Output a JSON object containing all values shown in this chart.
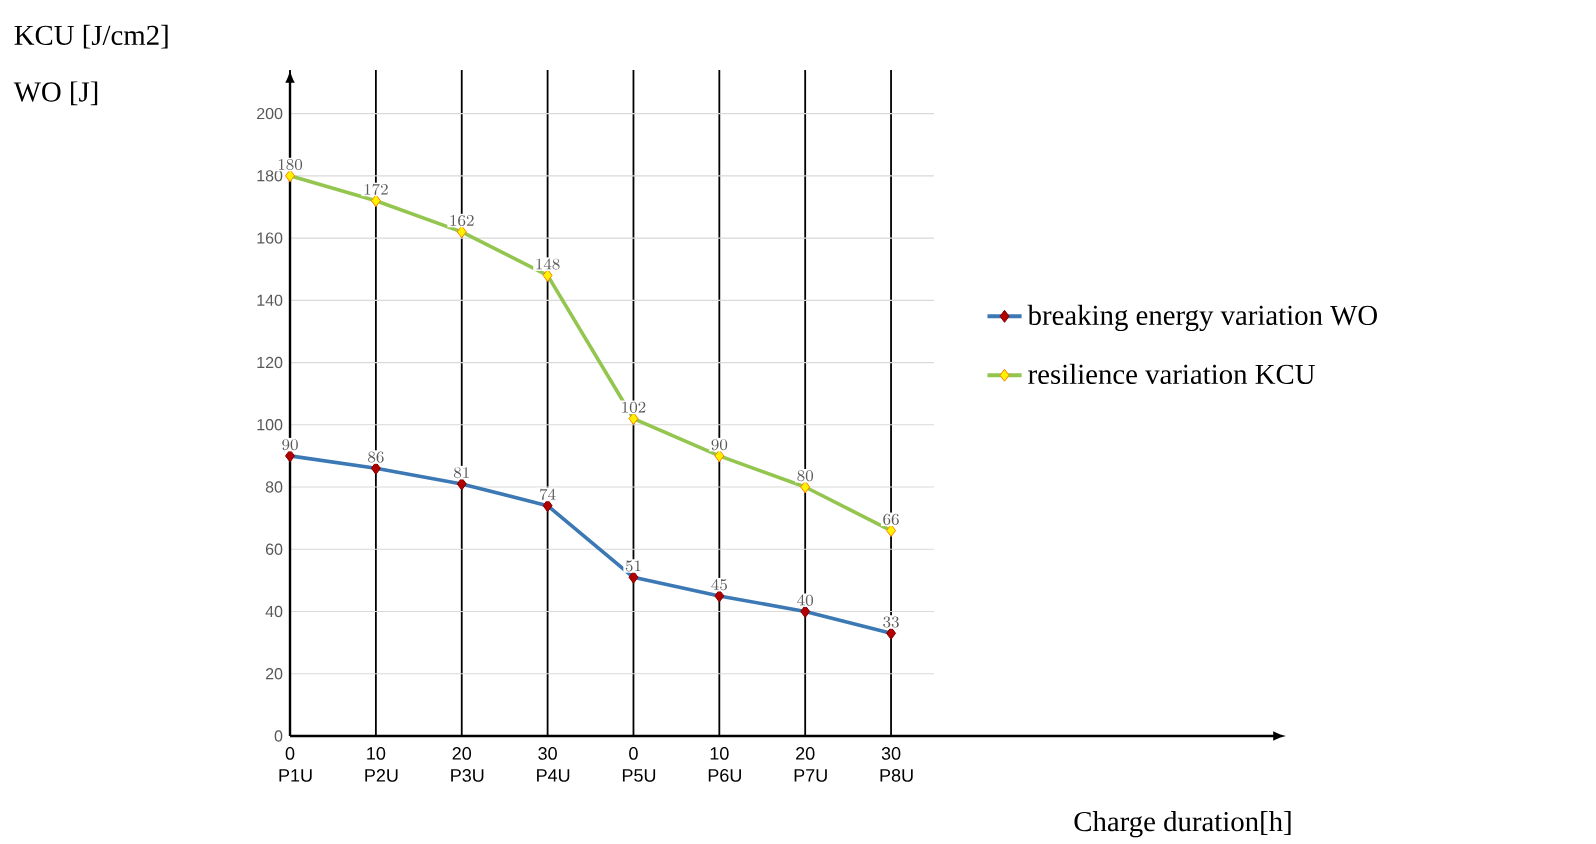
{
  "chart_data": {
    "type": "line",
    "ylabel": "KCU [J/cm2]",
    "xlabel": "Charge duration[h]",
    "annotations": [
      "WO [J]"
    ],
    "categories": [
      "0 P1U",
      "10 P2U",
      "20 P3U",
      "30 P4U",
      "0 P5U",
      "10 P6U",
      "20 P7U",
      "30 P8U"
    ],
    "series": [
      {
        "name": "breaking energy variation WO",
        "color": "#3b78b4",
        "values": [
          90,
          86,
          81,
          74,
          51,
          45,
          40,
          33
        ]
      },
      {
        "name": "resilience variation KCU",
        "color": "#93c54f",
        "values": [
          180,
          172,
          162,
          148,
          102,
          90,
          80,
          66
        ]
      }
    ],
    "ylim": [
      0,
      214
    ],
    "yticks": [
      0,
      20,
      40,
      60,
      80,
      100,
      120,
      140,
      160,
      180,
      200
    ],
    "grid": true,
    "legend": "right",
    "marker": "diamond",
    "data_labels": true
  }
}
